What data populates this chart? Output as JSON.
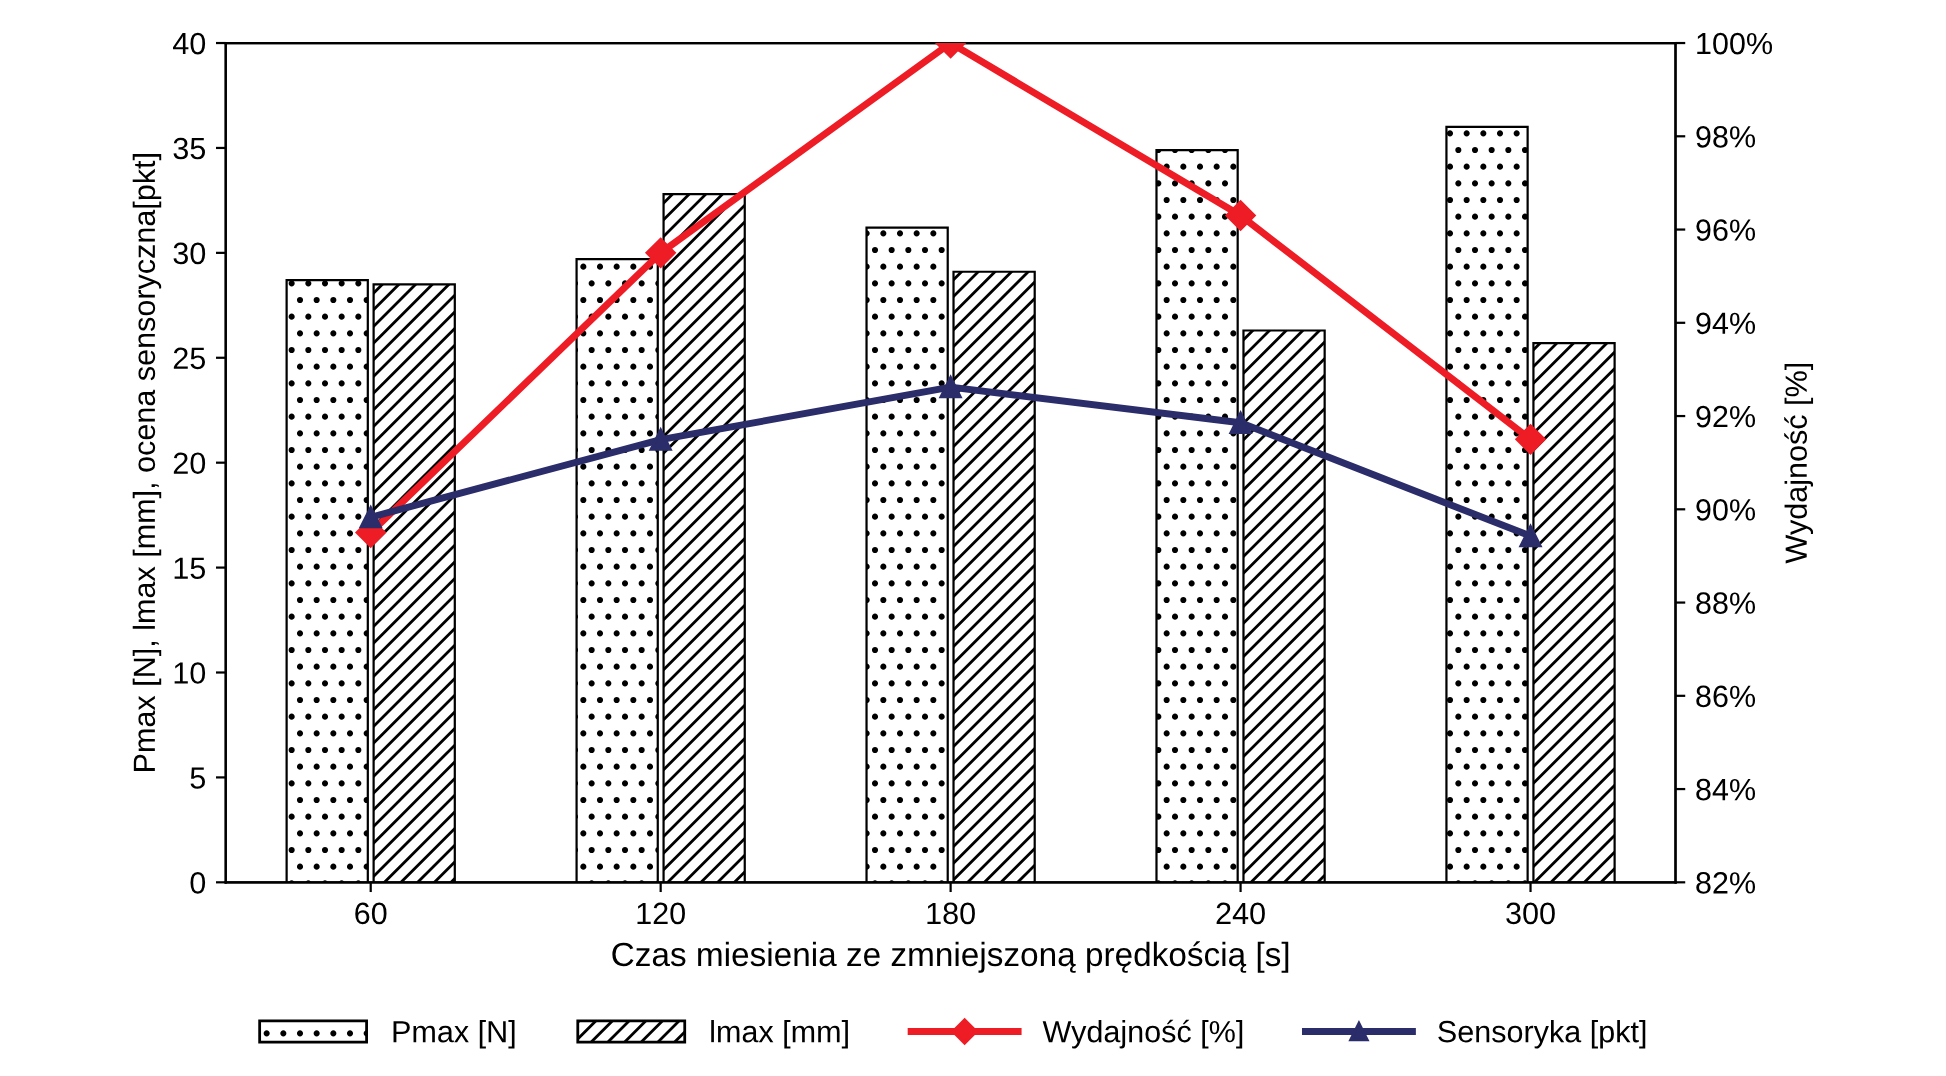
{
  "chart_data": {
    "type": "bar",
    "xlabel": "Czas miesienia ze zmniejszoną prędkością [s]",
    "ylabel": "Pmax [N], lmax [mm], ocena sensoryczna[pkt]",
    "y2label": "Wydajność [%]",
    "categories": [
      "60",
      "120",
      "180",
      "240",
      "300"
    ],
    "series": [
      {
        "name": "Pmax [N]",
        "color": "#000000",
        "values": [
          28.7,
          29.7,
          31.2,
          34.9,
          36.0
        ]
      },
      {
        "name": "lmax [mm]",
        "color": "#000000",
        "values": [
          28.5,
          32.8,
          29.1,
          26.3,
          25.7
        ]
      },
      {
        "name": "Wydajność [%]",
        "type": "line",
        "axis": "y2",
        "marker": "diamond",
        "color": "#ee1c25",
        "values": [
          89.5,
          95.5,
          100,
          96.3,
          91.5
        ]
      },
      {
        "name": "Sensoryka [pkt]",
        "type": "line",
        "marker": "triangle",
        "color": "#2b2d6b",
        "values": [
          17.4,
          21.1,
          23.6,
          21.9,
          16.5
        ]
      }
    ],
    "ylim": [
      0,
      40
    ],
    "yticks": [
      0,
      5,
      10,
      15,
      20,
      25,
      30,
      35,
      40
    ],
    "y2lim": [
      82,
      100
    ],
    "y2ticks": [
      {
        "value": 82,
        "label": "82%"
      },
      {
        "value": 84,
        "label": "84%"
      },
      {
        "value": 86,
        "label": "86%"
      },
      {
        "value": 88,
        "label": "88%"
      },
      {
        "value": 90,
        "label": "90%"
      },
      {
        "value": 92,
        "label": "92%"
      },
      {
        "value": 94,
        "label": "94%"
      },
      {
        "value": 96,
        "label": "96%"
      },
      {
        "value": 98,
        "label": "98%"
      },
      {
        "value": 100,
        "label": "100%"
      }
    ],
    "grid": false,
    "legend": "bottom"
  }
}
